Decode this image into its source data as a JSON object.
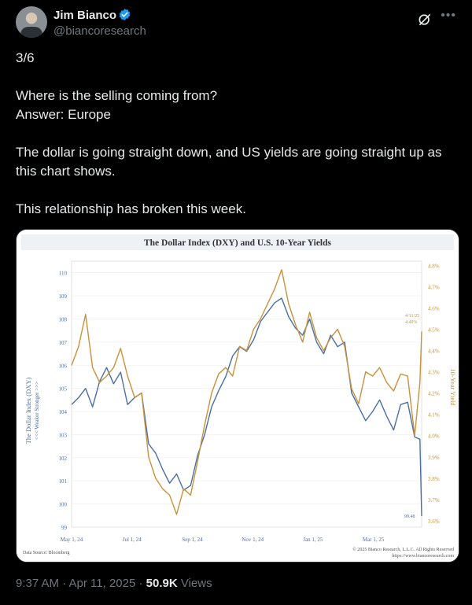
{
  "author": {
    "name": "Jim Bianco",
    "handle": "@biancoresearch"
  },
  "tweet": {
    "lines": [
      "3/6",
      "Where is the selling coming from?",
      "Answer: Europe",
      "The dollar is going straight down, and US yields are going straight up as this chart shows.",
      "This relationship has broken this week."
    ]
  },
  "footer": {
    "time": "9:37 AM · Apr 11, 2025 · ",
    "views_count": "50.9K",
    "views_label": " Views"
  },
  "colors": {
    "dxy": "#4a6fa5",
    "yield": "#c8923a",
    "accent_verified": "#1d9bf0"
  },
  "icons": {
    "verified": "verified-badge-icon",
    "grok": "grok-icon",
    "more": "more-icon"
  },
  "chart_data": {
    "type": "line",
    "title": "The Dollar Index (DXY)  and U.S. 10-Year Yields",
    "ylabel_left": "The Dollar Index (DXY)",
    "ylabel_left_sub": "<<< Weaker  Stronger >>>",
    "ylabel_right": "10-Year Yield",
    "yticks_left": [
      "110",
      "109",
      "108",
      "107",
      "106",
      "105",
      "104",
      "103",
      "102",
      "101",
      "100",
      "99"
    ],
    "yticks_right": [
      "4.8%",
      "4.7%",
      "4.6%",
      "4.5%",
      "4.4%",
      "4.3%",
      "4.2%",
      "4.1%",
      "4.0%",
      "3.9%",
      "3.8%",
      "3.7%",
      "3.6%"
    ],
    "xticks": [
      "May 1, 24",
      "Jul 1, 24",
      "Sep 1, 24",
      "Nov 1, 24",
      "Jan 1, 25",
      "Mar 1, 25"
    ],
    "ylim_left": [
      99,
      110.5
    ],
    "ylim_right": [
      3.57,
      4.82
    ],
    "source": "Data Source: Bloomberg",
    "copyright": "© 2025 Bianco Research, L.L.C. All Rights Reserved",
    "url": "https://www.biancoresearch.com",
    "annotation_date": "4/11/25",
    "annotation_yield": "4.49%",
    "annotation_dxy": "99.48",
    "series": [
      {
        "key": "dxy",
        "x": [
          0,
          0.02,
          0.04,
          0.06,
          0.08,
          0.1,
          0.12,
          0.14,
          0.16,
          0.18,
          0.2,
          0.22,
          0.24,
          0.26,
          0.28,
          0.3,
          0.32,
          0.34,
          0.36,
          0.38,
          0.4,
          0.42,
          0.44,
          0.46,
          0.48,
          0.5,
          0.52,
          0.54,
          0.56,
          0.58,
          0.6,
          0.62,
          0.64,
          0.66,
          0.68,
          0.7,
          0.72,
          0.74,
          0.76,
          0.78,
          0.8,
          0.82,
          0.84,
          0.86,
          0.88,
          0.9,
          0.92,
          0.94,
          0.96,
          0.98,
          0.995,
          1.0
        ],
        "y": [
          104.3,
          104.6,
          105.0,
          104.2,
          105.3,
          105.9,
          105.2,
          105.7,
          104.3,
          104.6,
          104.8,
          102.6,
          102.2,
          101.5,
          100.9,
          101.3,
          100.6,
          100.8,
          102.1,
          103.0,
          104.2,
          104.9,
          105.5,
          106.4,
          106.8,
          106.6,
          107.1,
          107.9,
          108.3,
          108.7,
          108.9,
          108.1,
          107.6,
          107.3,
          108.0,
          107.0,
          106.5,
          107.3,
          106.8,
          107.0,
          104.8,
          104.2,
          103.6,
          104.0,
          104.5,
          103.8,
          103.2,
          104.3,
          104.4,
          102.9,
          102.8,
          99.48
        ]
      },
      {
        "key": "yield",
        "x": [
          0,
          0.02,
          0.04,
          0.06,
          0.08,
          0.1,
          0.12,
          0.14,
          0.16,
          0.18,
          0.2,
          0.22,
          0.24,
          0.26,
          0.28,
          0.3,
          0.32,
          0.34,
          0.36,
          0.38,
          0.4,
          0.42,
          0.44,
          0.46,
          0.48,
          0.5,
          0.52,
          0.54,
          0.56,
          0.58,
          0.6,
          0.62,
          0.64,
          0.66,
          0.68,
          0.7,
          0.72,
          0.74,
          0.76,
          0.78,
          0.8,
          0.82,
          0.84,
          0.86,
          0.88,
          0.9,
          0.92,
          0.94,
          0.96,
          0.98,
          0.995,
          1.0
        ],
        "y": [
          4.33,
          4.42,
          4.57,
          4.32,
          4.25,
          4.28,
          4.32,
          4.41,
          4.28,
          4.18,
          4.2,
          3.9,
          3.8,
          3.75,
          3.72,
          3.63,
          3.75,
          3.72,
          3.88,
          4.05,
          4.2,
          4.29,
          4.32,
          4.28,
          4.42,
          4.4,
          4.5,
          4.55,
          4.62,
          4.69,
          4.78,
          4.62,
          4.52,
          4.44,
          4.58,
          4.46,
          4.4,
          4.46,
          4.5,
          4.42,
          4.22,
          4.15,
          4.3,
          4.28,
          4.32,
          4.25,
          4.21,
          4.29,
          4.28,
          4.0,
          4.25,
          4.49
        ]
      }
    ]
  }
}
